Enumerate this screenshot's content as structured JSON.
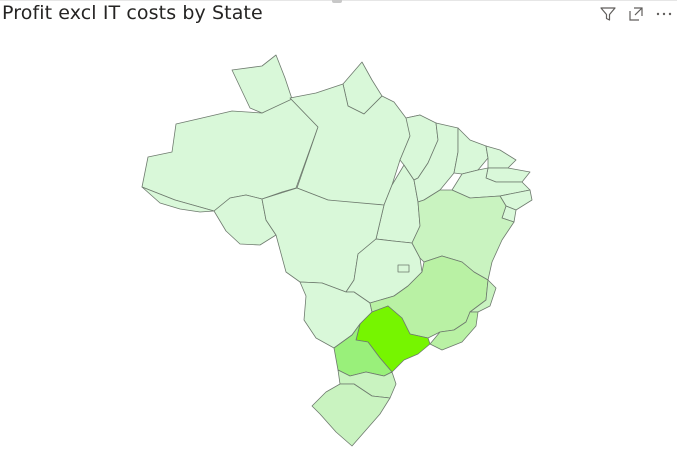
{
  "visual": {
    "title": "Profit excl IT costs by State"
  },
  "header_icons": [
    {
      "name": "filter-icon"
    },
    {
      "name": "focus-mode-icon"
    },
    {
      "name": "more-options-icon"
    }
  ],
  "map_data": {
    "type": "filled-map",
    "region": "Brazil",
    "value_field": "Profit excl IT costs",
    "colors": {
      "lowest": "#d9f8d9",
      "low": "#c9f3c0",
      "mid": "#b9f1a4",
      "high": "#99f07a",
      "highest": "#76f500"
    },
    "states": [
      {
        "id": "AM",
        "level": "lowest"
      },
      {
        "id": "RR",
        "level": "lowest"
      },
      {
        "id": "AP",
        "level": "lowest"
      },
      {
        "id": "PA",
        "level": "lowest"
      },
      {
        "id": "AC",
        "level": "lowest"
      },
      {
        "id": "RO",
        "level": "lowest"
      },
      {
        "id": "MT",
        "level": "lowest"
      },
      {
        "id": "MS",
        "level": "lowest"
      },
      {
        "id": "TO",
        "level": "lowest"
      },
      {
        "id": "GO",
        "level": "lowest"
      },
      {
        "id": "DF",
        "level": "lowest"
      },
      {
        "id": "MA",
        "level": "lowest"
      },
      {
        "id": "PI",
        "level": "lowest"
      },
      {
        "id": "CE",
        "level": "lowest"
      },
      {
        "id": "RN",
        "level": "lowest"
      },
      {
        "id": "PB",
        "level": "lowest"
      },
      {
        "id": "PE",
        "level": "lowest"
      },
      {
        "id": "AL",
        "level": "lowest"
      },
      {
        "id": "SE",
        "level": "lowest"
      },
      {
        "id": "BA",
        "level": "low"
      },
      {
        "id": "ES",
        "level": "low"
      },
      {
        "id": "MG",
        "level": "mid"
      },
      {
        "id": "RJ",
        "level": "mid"
      },
      {
        "id": "SC",
        "level": "low"
      },
      {
        "id": "RS",
        "level": "low"
      },
      {
        "id": "PR",
        "level": "high"
      },
      {
        "id": "SP",
        "level": "highest"
      }
    ]
  }
}
